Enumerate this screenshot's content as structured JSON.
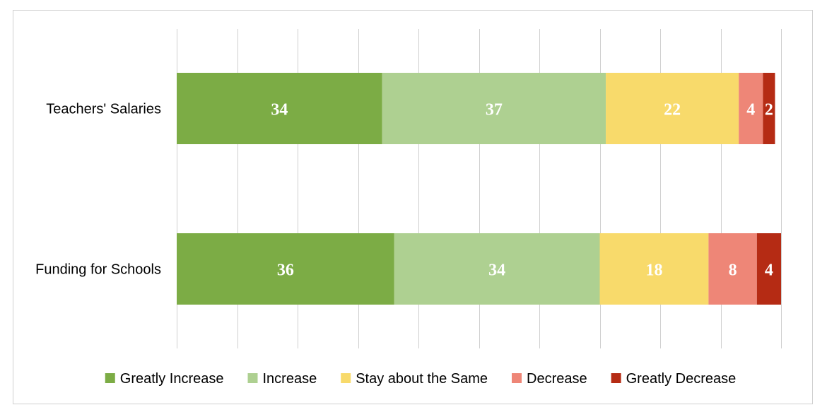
{
  "chart_data": {
    "type": "bar",
    "orientation": "horizontal",
    "stacked": true,
    "categories": [
      "Teachers' Salaries",
      "Funding for Schools"
    ],
    "series": [
      {
        "name": "Greatly Increase",
        "values": [
          34,
          36
        ],
        "color": "#7cac45"
      },
      {
        "name": "Increase",
        "values": [
          37,
          34
        ],
        "color": "#aed091"
      },
      {
        "name": "Stay about the Same",
        "values": [
          22,
          18
        ],
        "color": "#f8da6b"
      },
      {
        "name": "Decrease",
        "values": [
          4,
          8
        ],
        "color": "#ee8677"
      },
      {
        "name": "Greatly Decrease",
        "values": [
          2,
          4
        ],
        "color": "#b52b14"
      }
    ],
    "xlim": [
      0,
      100
    ],
    "grid": true,
    "legend_position": "bottom"
  }
}
